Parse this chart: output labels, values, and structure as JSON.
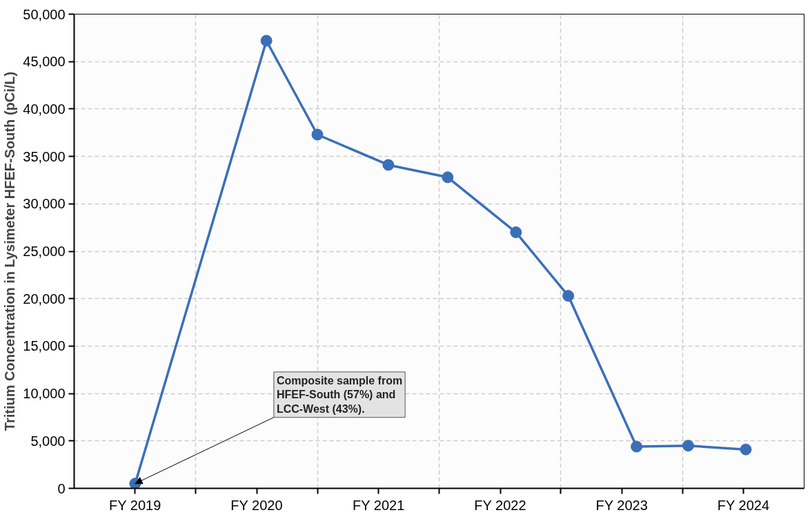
{
  "chart_data": {
    "type": "line",
    "ylabel": "Tritium Concentration in Lysimeter HFEF-South (pCi/L)",
    "x": [
      "2019-01-01",
      "2020-01-30",
      "2020-07-01",
      "2021-01-30",
      "2021-07-27",
      "2022-02-17",
      "2022-07-24",
      "2023-02-14",
      "2023-07-19",
      "2024-01-08"
    ],
    "series": [
      {
        "color": "#3a6fb8",
        "values": [
          500,
          47200,
          37300,
          34100,
          32800,
          27000,
          20300,
          4400,
          4500,
          4100
        ]
      }
    ],
    "xlim": [
      "2018-07-02",
      "2024-07-01"
    ],
    "xticks": [
      {
        "value": "2019-01-01",
        "label": "FY 2019"
      },
      {
        "value": "2019-07-02",
        "label": null
      },
      {
        "value": "2020-01-01",
        "label": "FY 2020"
      },
      {
        "value": "2020-07-01",
        "label": null
      },
      {
        "value": "2021-01-01",
        "label": "FY 2021"
      },
      {
        "value": "2021-07-02",
        "label": null
      },
      {
        "value": "2022-01-01",
        "label": "FY 2022"
      },
      {
        "value": "2022-07-02",
        "label": null
      },
      {
        "value": "2023-01-01",
        "label": "FY 2023"
      },
      {
        "value": "2023-07-02",
        "label": null
      },
      {
        "value": "2024-01-01",
        "label": "FY 2024"
      }
    ],
    "ylim": [
      0,
      50000
    ],
    "yticks": [
      {
        "value": 0,
        "label": "0"
      },
      {
        "value": 5000,
        "label": "5,000"
      },
      {
        "value": 10000,
        "label": "10,000"
      },
      {
        "value": 15000,
        "label": "15,000"
      },
      {
        "value": 20000,
        "label": "20,000"
      },
      {
        "value": 25000,
        "label": "25,000"
      },
      {
        "value": 30000,
        "label": "30,000"
      },
      {
        "value": 35000,
        "label": "35,000"
      },
      {
        "value": 40000,
        "label": "40,000"
      },
      {
        "value": 45000,
        "label": "45,000"
      },
      {
        "value": 50000,
        "label": "50,000"
      }
    ],
    "grid": true,
    "marker": "circle",
    "line_style": "solid",
    "annotations": [
      {
        "text": "Composite sample from\nHFEF-South (57%) and\nLCC-West (43%).",
        "x": "2019-01-01",
        "y": 500
      }
    ]
  }
}
